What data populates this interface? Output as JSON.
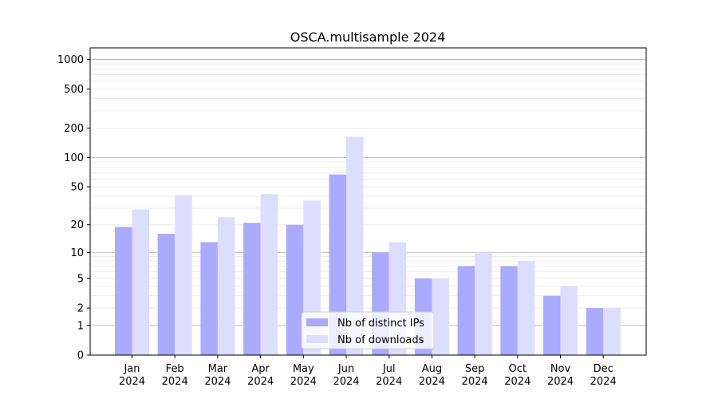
{
  "chart_data": {
    "type": "bar",
    "title": "OSCA.multisample 2024",
    "xlabel": "",
    "ylabel": "",
    "yscale": "log(1+x)",
    "ylim": [
      0,
      1200
    ],
    "yticks": [
      0,
      1,
      2,
      5,
      10,
      20,
      50,
      100,
      200,
      500,
      1000
    ],
    "categories": [
      "Jan\n2024",
      "Feb\n2024",
      "Mar\n2024",
      "Apr\n2024",
      "May\n2024",
      "Jun\n2024",
      "Jul\n2024",
      "Aug\n2024",
      "Sep\n2024",
      "Oct\n2024",
      "Nov\n2024",
      "Dec\n2024"
    ],
    "series": [
      {
        "name": "Nb of distinct IPs",
        "color": "#aaaaff",
        "values": [
          19,
          16,
          13,
          21,
          20,
          67,
          10,
          5,
          7,
          7,
          3,
          2
        ]
      },
      {
        "name": "Nb of downloads",
        "color": "#ddddff",
        "values": [
          29,
          41,
          24,
          42,
          36,
          164,
          13,
          5,
          10,
          8,
          4,
          2
        ]
      }
    ],
    "grid": true,
    "legend": "bottom-center"
  }
}
